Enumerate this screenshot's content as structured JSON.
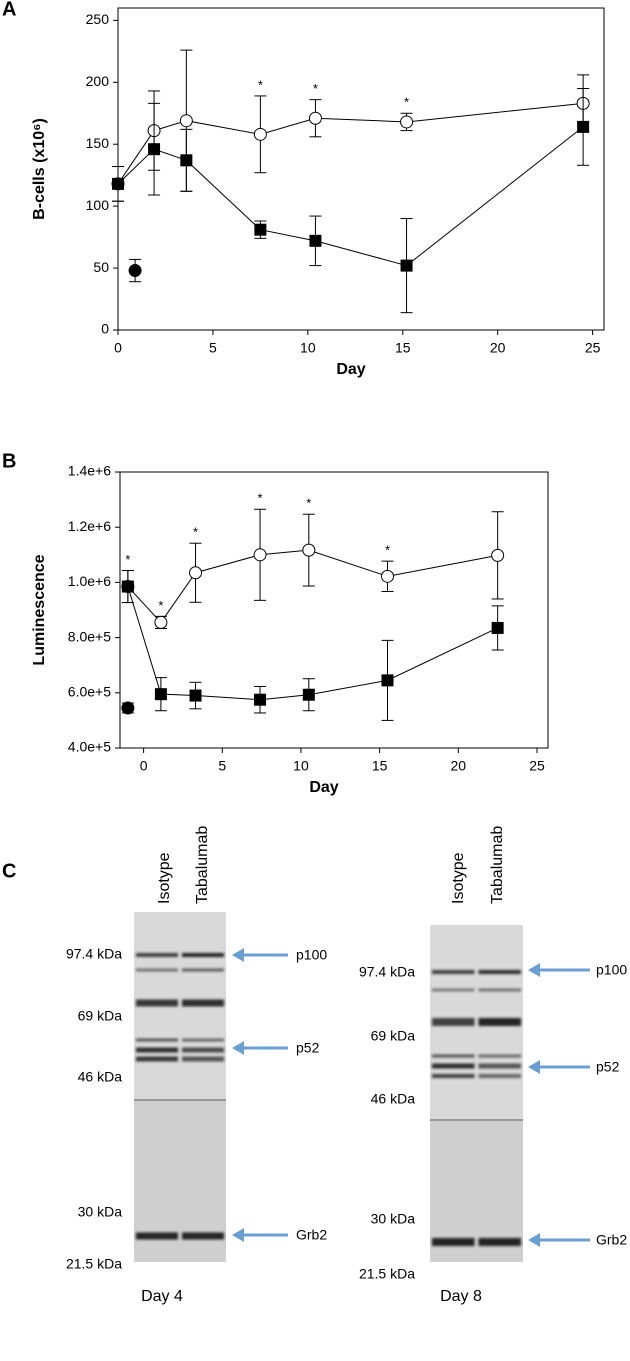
{
  "chart_data": [
    {
      "type": "line",
      "panel_label": "A",
      "xlabel": "Day",
      "ylabel": "B-cells (x10⁶)",
      "xlim": [
        0,
        25.6
      ],
      "xticks": [
        0,
        5,
        10,
        15,
        20,
        25
      ],
      "ylim": [
        0,
        260
      ],
      "yticks": [
        0,
        50,
        100,
        150,
        200,
        250
      ],
      "significance_label": "*",
      "series": [
        {
          "marker": "circle",
          "fill": "open",
          "color": "#000000",
          "x": [
            0,
            1.9,
            3.6,
            7.5,
            10.4,
            15.2,
            24.5
          ],
          "values": [
            118,
            161,
            169,
            158,
            171,
            168,
            183
          ],
          "errors": [
            14,
            32,
            57,
            31,
            15,
            7,
            23
          ],
          "significant": [
            false,
            false,
            false,
            true,
            true,
            true,
            false
          ]
        },
        {
          "marker": "square",
          "fill": "filled",
          "color": "#000000",
          "x": [
            0,
            1.9,
            3.6,
            7.5,
            10.4,
            15.2,
            24.5
          ],
          "values": [
            118,
            146,
            137,
            81,
            72,
            52,
            164
          ],
          "errors": [
            14,
            37,
            25,
            7,
            20,
            38,
            31
          ],
          "significant": [
            false,
            false,
            false,
            false,
            false,
            false,
            false
          ]
        },
        {
          "marker": "circle",
          "fill": "filled",
          "color": "#000000",
          "x": [
            0.9
          ],
          "values": [
            48
          ],
          "errors": [
            9
          ],
          "significant": [
            false
          ]
        }
      ]
    },
    {
      "type": "line",
      "panel_label": "B",
      "xlabel": "Day",
      "ylabel": "Luminescence",
      "xlim": [
        -1.5,
        25.7
      ],
      "xticks": [
        0,
        5,
        10,
        15,
        20,
        25
      ],
      "ylim": [
        400000,
        1400000
      ],
      "yticks": [
        {
          "value": 400000,
          "label": "4.0e+5"
        },
        {
          "value": 600000,
          "label": "6.0e+5"
        },
        {
          "value": 800000,
          "label": "8.0e+5"
        },
        {
          "value": 1000000,
          "label": "1.0e+6"
        },
        {
          "value": 1200000,
          "label": "1.2e+6"
        },
        {
          "value": 1400000,
          "label": "1.4e+6"
        }
      ],
      "significance_label": "*",
      "series": [
        {
          "marker": "circle",
          "fill": "open",
          "color": "#000000",
          "x": [
            -1,
            1.1,
            3.3,
            7.4,
            10.5,
            15.5,
            22.5
          ],
          "values": [
            985000,
            855000,
            1035000,
            1100000,
            1117000,
            1022000,
            1098000
          ],
          "errors": [
            58000,
            22000,
            107000,
            165000,
            130000,
            55000,
            158000
          ],
          "significant": [
            true,
            true,
            true,
            true,
            true,
            true,
            false
          ]
        },
        {
          "marker": "square",
          "fill": "filled",
          "color": "#000000",
          "x": [
            -1,
            1.1,
            3.3,
            7.4,
            10.5,
            15.5,
            22.5
          ],
          "values": [
            985000,
            595000,
            590000,
            575000,
            593000,
            645000,
            835000
          ],
          "errors": [
            58000,
            60000,
            48000,
            48000,
            58000,
            145000,
            80000
          ],
          "significant": [
            false,
            false,
            false,
            false,
            false,
            false,
            false
          ]
        },
        {
          "marker": "circle",
          "fill": "filled",
          "color": "#000000",
          "x": [
            -1
          ],
          "values": [
            545000
          ],
          "errors": [
            18000
          ],
          "significant": [
            false
          ]
        }
      ]
    }
  ],
  "blots": {
    "panel_label": "C",
    "panels": [
      {
        "lanes": [
          "Isotype",
          "Tabalumab"
        ],
        "markers": [
          "97.4 kDa",
          "69 kDa",
          "46 kDa",
          "30 kDa",
          "21.5 kDa"
        ],
        "bands": [
          "p100",
          "p52",
          "Grb2"
        ],
        "day": "Day 4"
      },
      {
        "lanes": [
          "Isotype",
          "Tabalumab"
        ],
        "markers": [
          "97.4 kDa",
          "69 kDa",
          "46 kDa",
          "30 kDa",
          "21.5 kDa"
        ],
        "bands": [
          "p100",
          "p52",
          "Grb2"
        ],
        "day": "Day 8"
      }
    ]
  }
}
